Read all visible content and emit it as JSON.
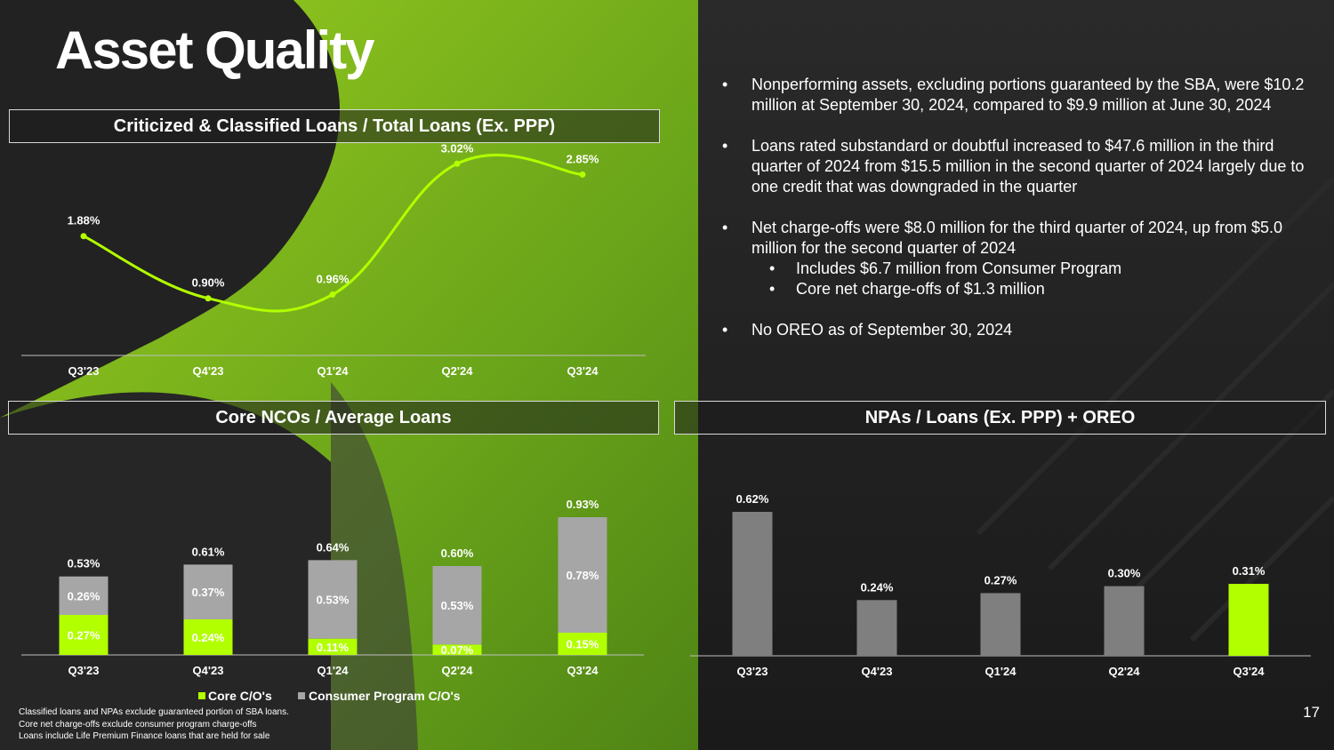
{
  "title": "Asset Quality",
  "colors": {
    "accent": "#b2ff00",
    "bar_gray": "#7f7f7f",
    "light_gray": "#a6a6a6",
    "background": "#222222"
  },
  "bullets": [
    {
      "text": "Nonperforming assets, excluding portions guaranteed by the SBA, were $10.2 million at September 30, 2024, compared to $9.9 million at June 30, 2024",
      "subs": []
    },
    {
      "text": "Loans rated substandard or doubtful increased to $47.6 million in the third quarter of 2024 from $15.5 million in the second quarter of 2024 largely due to one credit that was downgraded in the quarter",
      "subs": []
    },
    {
      "text": "Net charge-offs were $8.0 million for the third quarter of 2024, up from $5.0 million for the second quarter of 2024",
      "subs": [
        "Includes $6.7 million from Consumer Program",
        "Core net charge-offs of $1.3 million"
      ]
    },
    {
      "text": "No OREO as of September 30, 2024",
      "subs": []
    }
  ],
  "footnotes": [
    "Classified loans and NPAs exclude guaranteed portion of SBA loans.",
    "Core net charge-offs exclude consumer program charge-offs",
    "Loans include Life Premium Finance loans that are held for sale"
  ],
  "page_number": "17",
  "chart_data": [
    {
      "type": "line",
      "title": "Criticized & Classified Loans / Total Loans (Ex. PPP)",
      "categories": [
        "Q3'23",
        "Q4'23",
        "Q1'24",
        "Q2'24",
        "Q3'24"
      ],
      "series": [
        {
          "values": [
            1.88,
            0.9,
            0.96,
            3.02,
            2.85
          ]
        }
      ],
      "data_labels": [
        "1.88%",
        "0.90%",
        "0.96%",
        "3.02%",
        "2.85%"
      ],
      "line_color": "#b2ff00",
      "smooth": true,
      "ylim": [
        0,
        3.5
      ],
      "grid": false
    },
    {
      "type": "bar",
      "stacked": true,
      "title": "Core NCOs / Average Loans",
      "categories": [
        "Q3'23",
        "Q4'23",
        "Q1'24",
        "Q2'24",
        "Q3'24"
      ],
      "series": [
        {
          "name": "Core C/O's",
          "values": [
            0.27,
            0.24,
            0.11,
            0.07,
            0.15
          ],
          "labels": [
            "0.27%",
            "0.24%",
            "0.11%",
            "0.07%",
            "0.15%"
          ],
          "color": "#b2ff00"
        },
        {
          "name": "Consumer Program C/O's",
          "values": [
            0.26,
            0.37,
            0.53,
            0.53,
            0.78
          ],
          "labels": [
            "0.26%",
            "0.37%",
            "0.53%",
            "0.53%",
            "0.78%"
          ],
          "color": "#a6a6a6"
        }
      ],
      "totals": [
        "0.53%",
        "0.61%",
        "0.64%",
        "0.60%",
        "0.93%"
      ],
      "legend": "bottom",
      "ylim": [
        0,
        1.0
      ],
      "grid": false
    },
    {
      "type": "bar",
      "title": "NPAs / Loans (Ex. PPP) + OREO",
      "categories": [
        "Q3'23",
        "Q4'23",
        "Q1'24",
        "Q2'24",
        "Q3'24"
      ],
      "values": [
        0.62,
        0.24,
        0.27,
        0.3,
        0.31
      ],
      "labels": [
        "0.62%",
        "0.24%",
        "0.27%",
        "0.30%",
        "0.31%"
      ],
      "colors": [
        "#7f7f7f",
        "#7f7f7f",
        "#7f7f7f",
        "#7f7f7f",
        "#b2ff00"
      ],
      "ylim": [
        0,
        0.7
      ],
      "grid": false
    }
  ]
}
